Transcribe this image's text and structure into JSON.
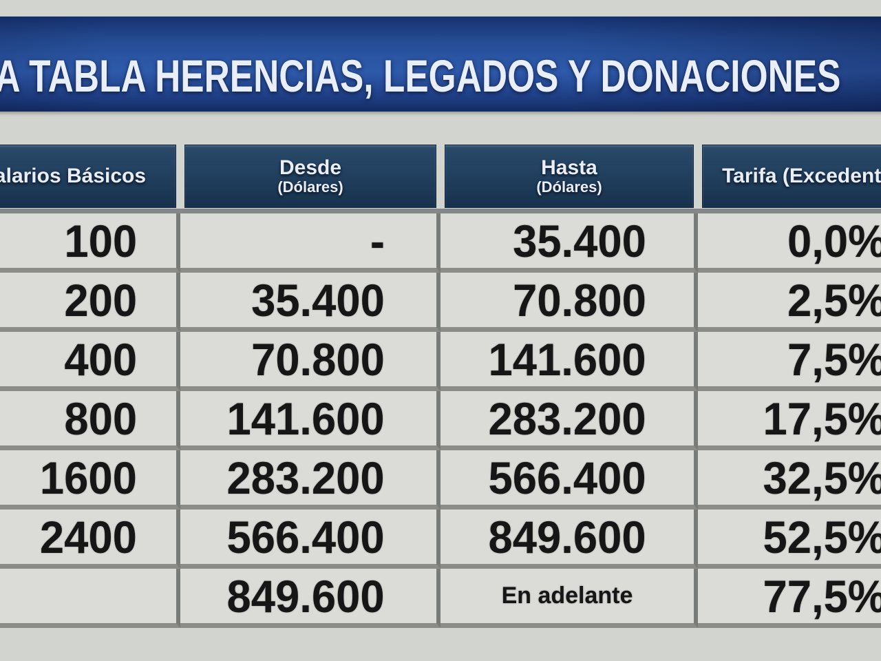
{
  "title": "VA TABLA HERENCIAS, LEGADOS Y DONACIONES",
  "colors": {
    "title_bar_blue": "#2a55a2",
    "header_navy": "#203e5c",
    "cell_background": "#dbdcd7",
    "page_background": "#d2d4cf",
    "grid_line": "#8b8c88",
    "number_text": "#161616",
    "header_text": "#e9edf6"
  },
  "chart_data": {
    "type": "table",
    "title": "VA TABLA HERENCIAS, LEGADOS Y DONACIONES",
    "columns": [
      {
        "label": "Salarios Básicos",
        "sublabel": ""
      },
      {
        "label": "Desde",
        "sublabel": "(Dólares)"
      },
      {
        "label": "Hasta",
        "sublabel": "(Dólares)"
      },
      {
        "label": "Tarifa (Excedente)",
        "sublabel": ""
      }
    ],
    "rows": [
      [
        "100",
        "-",
        "35.400",
        "0,0%"
      ],
      [
        "200",
        "35.400",
        "70.800",
        "2,5%"
      ],
      [
        "400",
        "70.800",
        "141.600",
        "7,5%"
      ],
      [
        "800",
        "141.600",
        "283.200",
        "17,5%"
      ],
      [
        "1600",
        "283.200",
        "566.400",
        "32,5%"
      ],
      [
        "2400",
        "566.400",
        "849.600",
        "52,5%"
      ],
      [
        "",
        "849.600",
        "En adelante",
        "77,5%"
      ]
    ]
  }
}
